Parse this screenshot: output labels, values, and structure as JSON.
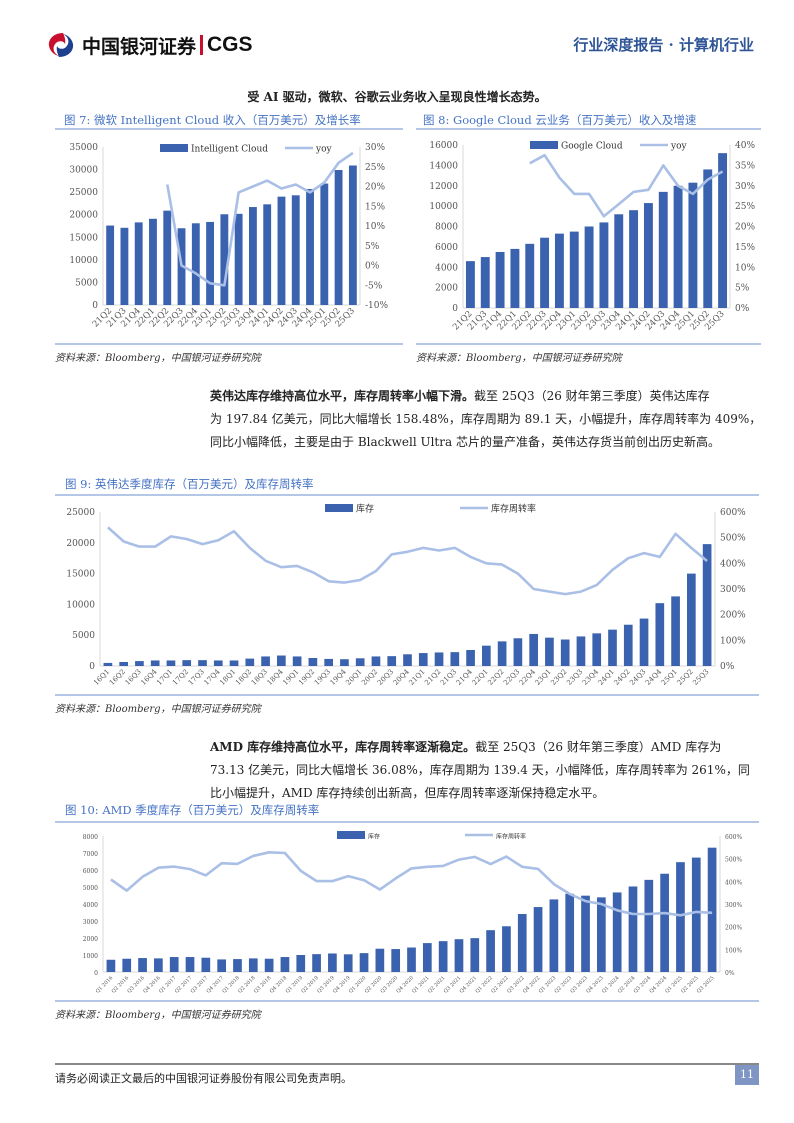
{
  "header": {
    "brand_cn": "中国银河证券",
    "brand_en": "CGS",
    "report_type": "行业深度报告 · 计算机行业"
  },
  "lead_sentence": "受 AI 驱动，微软、谷歌云业务收入呈现良性增长态势。",
  "figures": {
    "fig7": {
      "title": "图 7:  微软 Intelligent Cloud 收入（百万美元）及增长率",
      "source": "资料来源：Bloomberg，中国银河证券研究院"
    },
    "fig8": {
      "title": "图 8:  Google Cloud 云业务（百万美元）收入及增速",
      "source": "资料来源：Bloomberg，中国银河证券研究院"
    },
    "fig9": {
      "title": "图 9:  英伟达季度库存（百万美元）及库存周转率",
      "source": "资料来源：Bloomberg，中国银河证券研究院"
    },
    "fig10": {
      "title": "图 10:  AMD 季度库存（百万美元）及库存周转率",
      "source": "资料来源：Bloomberg，中国银河证券研究院"
    }
  },
  "paragraphs": {
    "nvidia": {
      "bold": "英伟达库存维持高位水平，库存周转率小幅下滑。",
      "line1": "截至 25Q3（26 财年第三季度）英伟达库存",
      "line2": "为 197.84 亿美元，同比大幅增长 158.48%，库存周期为 89.1 天，小幅提升，库存周转率为 409%，",
      "line3": "同比小幅降低，主要是由于 Blackwell Ultra 芯片的量产准备，英伟达存货当前创出历史新高。"
    },
    "amd": {
      "bold": "AMD 库存维持高位水平，库存周转率逐渐稳定。",
      "line1": "截至 25Q3（26 财年第三季度）AMD 库存为",
      "line2": "73.13 亿美元，同比大幅增长 36.08%，库存周期为 139.4 天，小幅降低，库存周转率为 261%，同",
      "line3": "比小幅提升，AMD 库存持续创出新高，但库存周转率逐渐保持稳定水平。"
    }
  },
  "footer": {
    "disclaimer": "请务必阅读正文最后的中国银河证券股份有限公司免责声明。",
    "page_number": "11"
  },
  "colors": {
    "bar": "#3a62ae",
    "line": "#a9bfe6",
    "title_blue": "#4472c4",
    "rule": "#b4c7e7"
  },
  "chart_data": [
    {
      "id": "fig7",
      "type": "bar+line",
      "title": "微软 Intelligent Cloud 收入（百万美元）及增长率",
      "categories": [
        "21Q2",
        "21Q3",
        "21Q4",
        "22Q1",
        "22Q2",
        "22Q3",
        "22Q4",
        "23Q1",
        "23Q2",
        "23Q3",
        "23Q4",
        "24Q1",
        "24Q2",
        "24Q3",
        "24Q4",
        "25Q1",
        "25Q2",
        "25Q3"
      ],
      "series": [
        {
          "name": "Intelligent Cloud",
          "type": "bar",
          "axis": "left",
          "values": [
            17600,
            17100,
            18300,
            19100,
            20900,
            17000,
            18100,
            18400,
            20100,
            20200,
            21700,
            22300,
            24000,
            24300,
            25700,
            26900,
            29900,
            30900
          ]
        },
        {
          "name": "yoy",
          "type": "line",
          "axis": "right",
          "values": [
            null,
            null,
            null,
            null,
            20.5,
            0,
            -2,
            -4.5,
            -5,
            18.5,
            20,
            21.5,
            19.5,
            20.5,
            18.5,
            21,
            26,
            28.5
          ]
        }
      ],
      "left_axis": {
        "min": 0,
        "max": 35000,
        "ticks": [
          "0",
          "5000",
          "10000",
          "15000",
          "20000",
          "25000",
          "30000",
          "35000"
        ]
      },
      "right_axis": {
        "min": -10,
        "max": 30,
        "ticks": [
          "-10%",
          "-5%",
          "0%",
          "5%",
          "10%",
          "15%",
          "20%",
          "25%",
          "30%"
        ]
      },
      "legend": [
        "Intelligent Cloud",
        "yoy"
      ],
      "legend_position": "top"
    },
    {
      "id": "fig8",
      "type": "bar+line",
      "title": "Google Cloud 云业务（百万美元）收入及增速",
      "categories": [
        "21Q2",
        "21Q3",
        "21Q4",
        "22Q1",
        "22Q2",
        "22Q3",
        "22Q4",
        "23Q1",
        "23Q2",
        "23Q3",
        "23Q4",
        "24Q1",
        "24Q2",
        "24Q3",
        "24Q4",
        "25Q1",
        "25Q2",
        "25Q3"
      ],
      "series": [
        {
          "name": "Google Cloud",
          "type": "bar",
          "axis": "left",
          "values": [
            4600,
            5000,
            5500,
            5800,
            6300,
            6900,
            7300,
            7500,
            8000,
            8400,
            9200,
            9600,
            10300,
            11400,
            12000,
            12300,
            13600,
            15200
          ]
        },
        {
          "name": "yoy",
          "type": "line",
          "axis": "right",
          "values": [
            null,
            null,
            null,
            null,
            35.5,
            37.5,
            32,
            28,
            28,
            22.5,
            25.5,
            28.5,
            29,
            35,
            30,
            28,
            31.5,
            33.5
          ]
        }
      ],
      "left_axis": {
        "min": 0,
        "max": 16000,
        "ticks": [
          "0",
          "2000",
          "4000",
          "6000",
          "8000",
          "10000",
          "12000",
          "14000",
          "16000"
        ]
      },
      "right_axis": {
        "min": 0,
        "max": 40,
        "ticks": [
          "0%",
          "5%",
          "10%",
          "15%",
          "20%",
          "25%",
          "30%",
          "35%",
          "40%"
        ]
      },
      "legend": [
        "Google Cloud",
        "yoy"
      ],
      "legend_position": "top"
    },
    {
      "id": "fig9",
      "type": "bar+line",
      "title": "英伟达季度库存（百万美元）及库存周转率",
      "categories": [
        "16Q1",
        "16Q2",
        "16Q3",
        "16Q4",
        "17Q1",
        "17Q2",
        "17Q3",
        "17Q4",
        "18Q1",
        "18Q2",
        "18Q3",
        "18Q4",
        "19Q1",
        "19Q2",
        "19Q3",
        "19Q4",
        "20Q1",
        "20Q2",
        "20Q3",
        "20Q4",
        "21Q1",
        "21Q2",
        "21Q3",
        "21Q4",
        "22Q1",
        "22Q2",
        "22Q3",
        "22Q4",
        "23Q1",
        "23Q2",
        "23Q3",
        "23Q4",
        "24Q1",
        "24Q2",
        "24Q3",
        "24Q4",
        "25Q1",
        "25Q2",
        "25Q3"
      ],
      "series": [
        {
          "name": "库存",
          "type": "bar",
          "axis": "left",
          "values": [
            500,
            650,
            800,
            900,
            900,
            950,
            950,
            900,
            900,
            1200,
            1550,
            1700,
            1550,
            1300,
            1150,
            1100,
            1250,
            1550,
            1600,
            1900,
            2100,
            2200,
            2250,
            2600,
            3300,
            4000,
            4500,
            5200,
            4600,
            4300,
            4800,
            5300,
            5900,
            6700,
            7700,
            10200,
            11300,
            15000,
            19784
          ]
        },
        {
          "name": "库存周转率",
          "type": "line",
          "axis": "right",
          "values": [
            540,
            485,
            465,
            465,
            505,
            495,
            475,
            490,
            525,
            460,
            410,
            385,
            390,
            365,
            330,
            325,
            335,
            370,
            435,
            445,
            460,
            450,
            460,
            425,
            400,
            395,
            360,
            300,
            290,
            280,
            290,
            315,
            375,
            420,
            440,
            425,
            515,
            460,
            409
          ]
        }
      ],
      "left_axis": {
        "min": 0,
        "max": 25000,
        "ticks": [
          "0",
          "5000",
          "10000",
          "15000",
          "20000",
          "25000"
        ]
      },
      "right_axis": {
        "min": 0,
        "max": 600,
        "ticks": [
          "0%",
          "100%",
          "200%",
          "300%",
          "400%",
          "500%",
          "600%"
        ]
      },
      "legend": [
        "库存",
        "库存周转率"
      ],
      "legend_position": "top"
    },
    {
      "id": "fig10",
      "type": "bar+line",
      "title": "AMD 季度库存（百万美元）及库存周转率",
      "categories": [
        "Q1 2016",
        "Q2 2016",
        "Q3 2016",
        "Q4 2016",
        "Q1 2017",
        "Q2 2017",
        "Q3 2017",
        "Q4 2017",
        "Q1 2018",
        "Q2 2018",
        "Q3 2018",
        "Q4 2018",
        "Q1 2019",
        "Q2 2019",
        "Q3 2019",
        "Q4 2019",
        "Q1 2020",
        "Q2 2020",
        "Q3 2020",
        "Q4 2020",
        "Q1 2021",
        "Q2 2021",
        "Q3 2021",
        "Q4 2021",
        "Q1 2022",
        "Q2 2022",
        "Q3 2022",
        "Q4 2022",
        "Q1 2023",
        "Q2 2023",
        "Q3 2023",
        "Q4 2023",
        "Q1 2024",
        "Q2 2024",
        "Q3 2024",
        "Q4 2024",
        "Q1 2025",
        "Q2 2025",
        "Q3 2025"
      ],
      "series": [
        {
          "name": "库存",
          "type": "bar",
          "axis": "left",
          "values": [
            720,
            780,
            820,
            800,
            880,
            880,
            840,
            740,
            760,
            800,
            780,
            880,
            1000,
            1050,
            1090,
            1040,
            1110,
            1370,
            1350,
            1440,
            1700,
            1815,
            1930,
            1990,
            2460,
            2690,
            3410,
            3820,
            4270,
            4600,
            4490,
            4390,
            4680,
            5030,
            5420,
            5780,
            6460,
            6730,
            7313
          ]
        },
        {
          "name": "库存周转率",
          "type": "line",
          "axis": "right",
          "values": [
            408,
            359,
            420,
            460,
            465,
            454,
            426,
            480,
            477,
            512,
            528,
            525,
            446,
            401,
            401,
            423,
            405,
            364,
            413,
            457,
            464,
            468,
            496,
            508,
            476,
            509,
            464,
            455,
            388,
            344,
            313,
            300,
            272,
            256,
            256,
            260,
            250,
            265,
            261
          ]
        }
      ],
      "left_axis": {
        "min": 0,
        "max": 8000,
        "ticks": [
          "0",
          "1000",
          "2000",
          "3000",
          "4000",
          "5000",
          "6000",
          "7000",
          "8000"
        ]
      },
      "right_axis": {
        "min": 0,
        "max": 600,
        "ticks": [
          "0%",
          "100%",
          "200%",
          "300%",
          "400%",
          "500%",
          "600%"
        ]
      },
      "legend": [
        "库存",
        "库存周转率"
      ],
      "legend_position": "top"
    }
  ]
}
